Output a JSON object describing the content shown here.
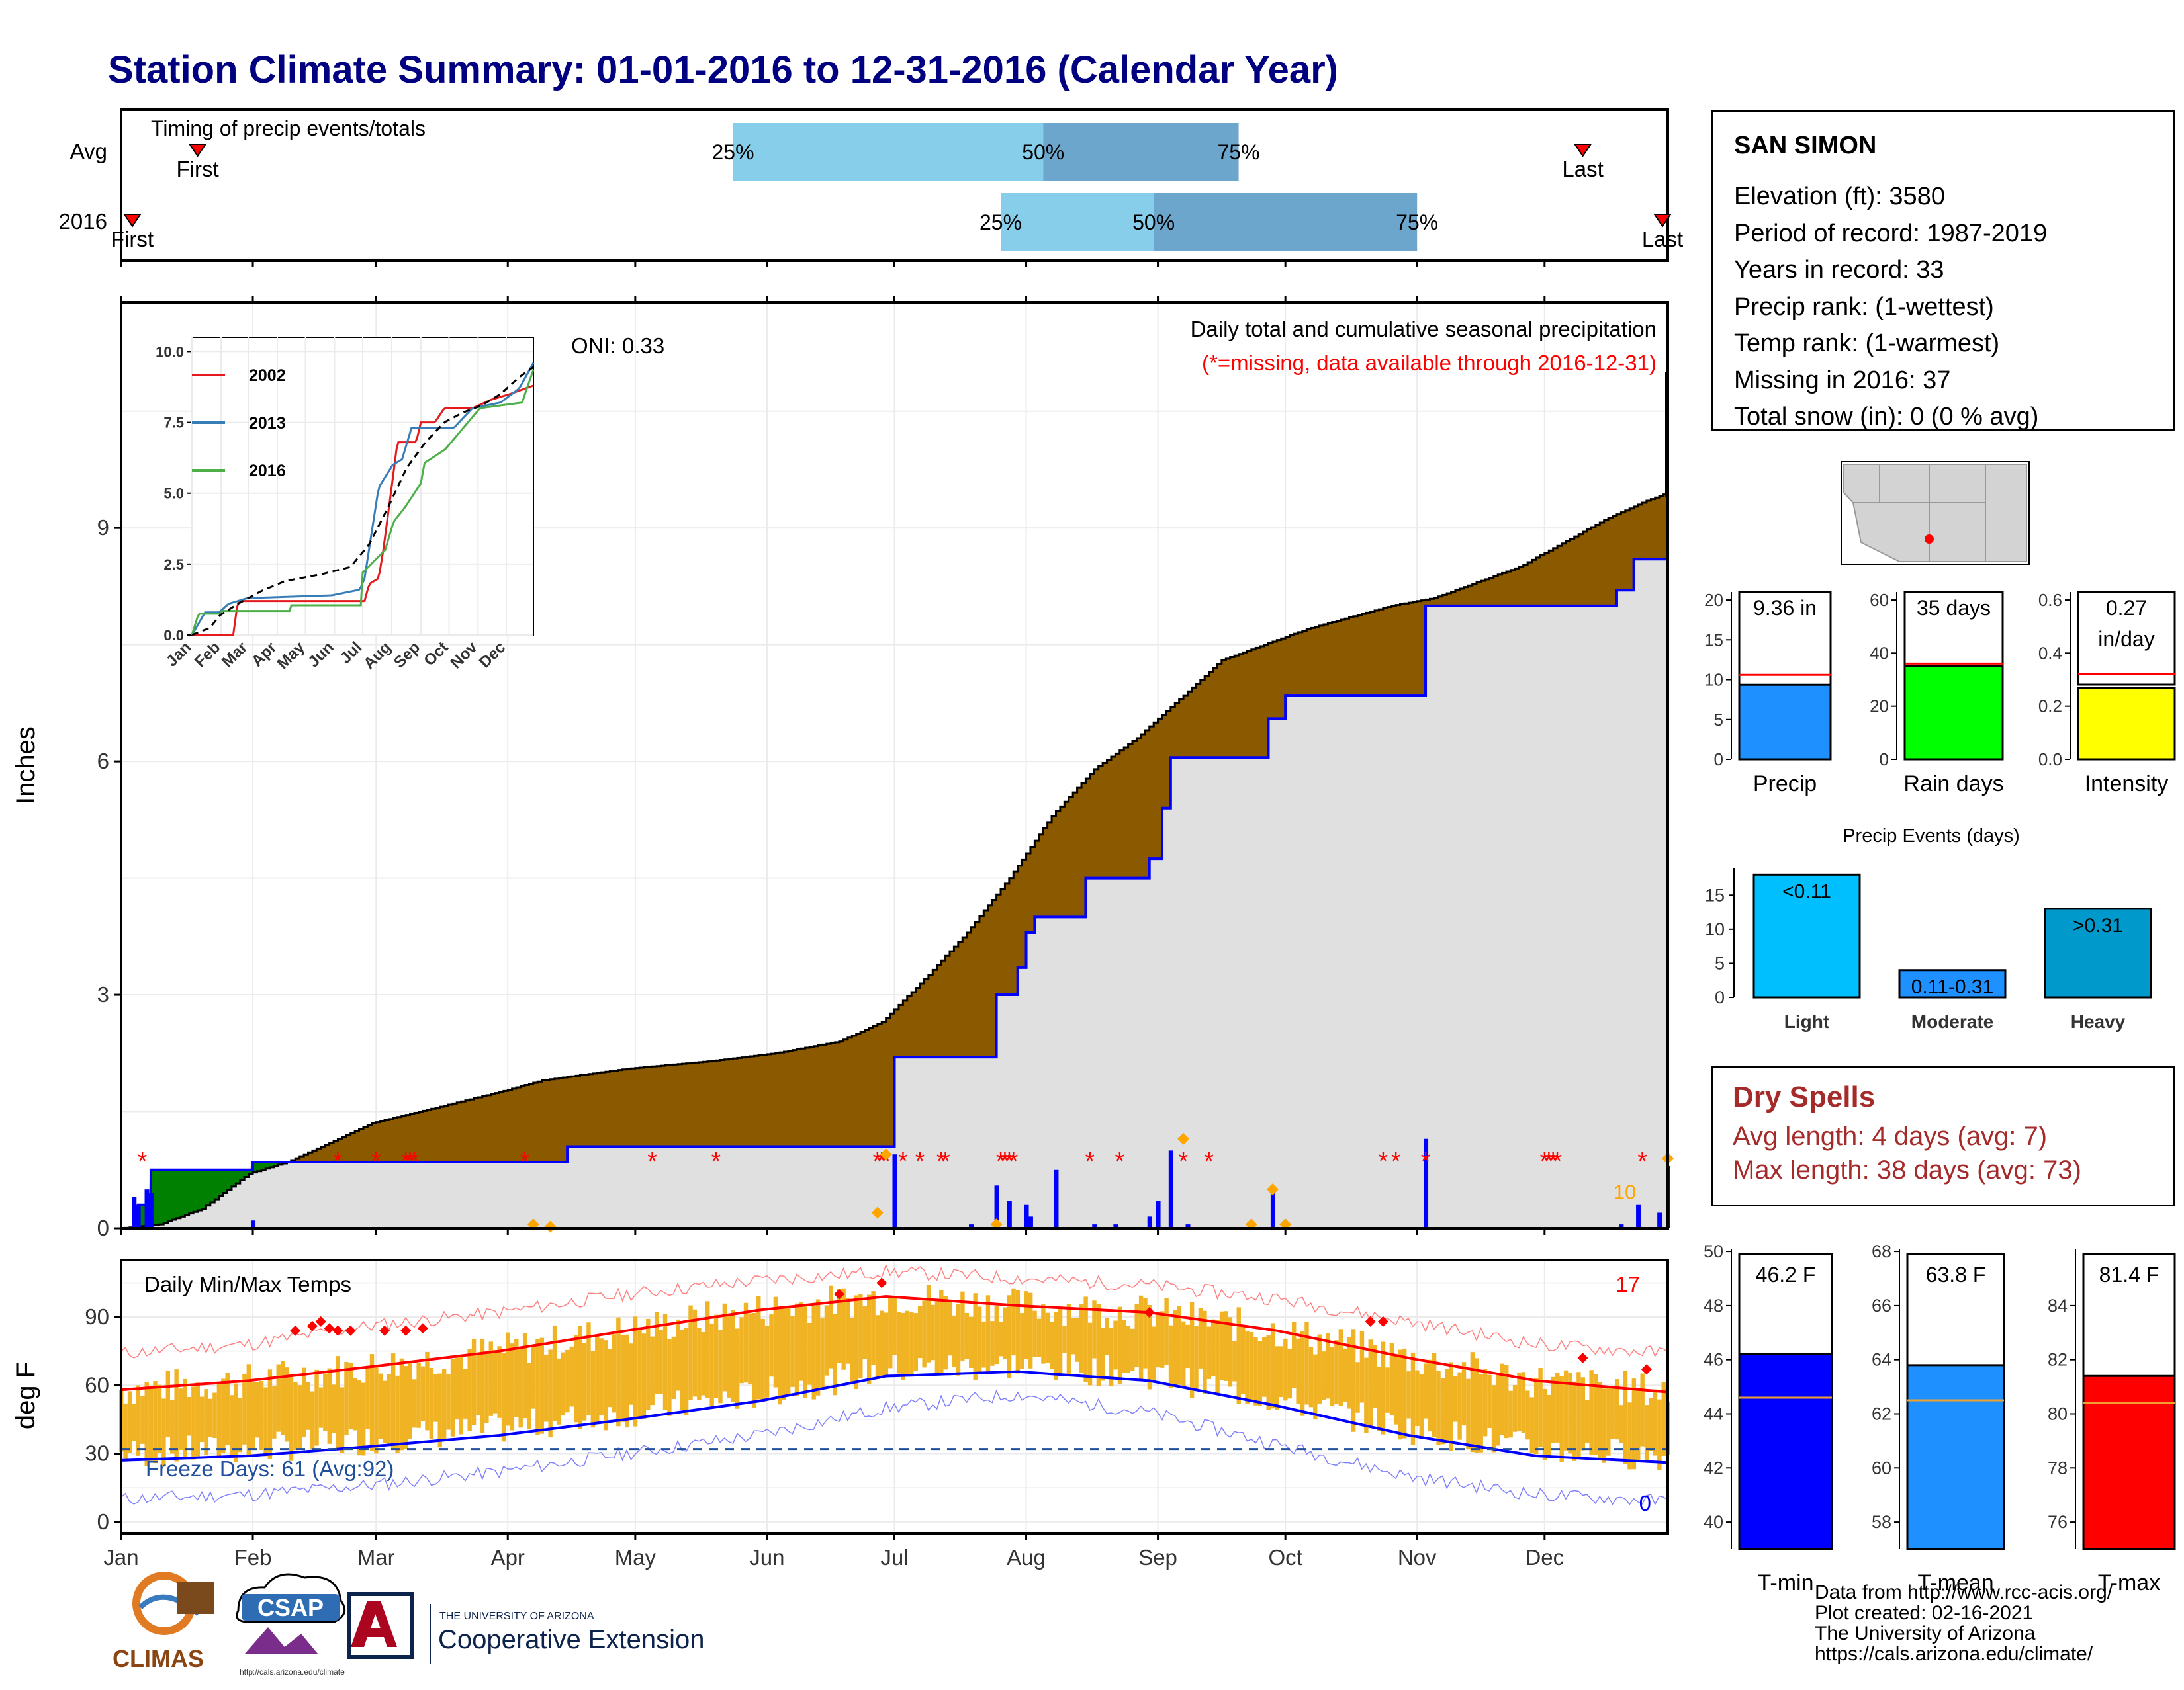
{
  "title": "Station Climate Summary: 01-01-2016 to 12-31-2016 (Calendar Year)",
  "timing": {
    "title": "Timing of precip events/totals",
    "rows": [
      {
        "label": "Avg",
        "first_doy": 19,
        "last_doy": 345,
        "p25_doy": 145,
        "p50_doy": 218,
        "p75_doy": 264
      },
      {
        "label": "2016",
        "first_doy": 3,
        "last_doy": 365,
        "p25_doy": 208,
        "p50_doy": 244,
        "p75_doy": 306
      }
    ],
    "first_label": "First",
    "last_label": "Last",
    "p25_label": "25%",
    "p50_label": "50%",
    "p75_label": "75%",
    "colors": {
      "light": "#87ceeb",
      "dark": "#6ca6cd"
    }
  },
  "station": {
    "name": "SAN SIMON",
    "elevation": "Elevation (ft): 3580",
    "period": "Period of record: 1987-2019",
    "years": "Years in record: 33",
    "precip_rank": "Precip rank:  (1-wettest)",
    "temp_rank": "Temp rank:  (1-warmest)",
    "missing": "Missing in 2016: 37",
    "snow": "Total snow (in): 0 (0 % avg)"
  },
  "chart_data": [
    {
      "type": "area",
      "id": "cumulative-precip",
      "title": "Daily total and cumulative seasonal precipitation",
      "subtitle": "(*=missing, data available through 2016-12-31)",
      "oni": "ONI: 0.33",
      "ylabel": "Inches",
      "ylim": [
        0,
        11.9
      ],
      "yticks": [
        0,
        3,
        6,
        9
      ],
      "months": [
        "Jan",
        "Feb",
        "Mar",
        "Apr",
        "May",
        "Jun",
        "Jul",
        "Aug",
        "Sep",
        "Oct",
        "Nov",
        "Dec"
      ],
      "avg_cumulative": [
        [
          1,
          0
        ],
        [
          10,
          0.05
        ],
        [
          20,
          0.25
        ],
        [
          31,
          0.7
        ],
        [
          40,
          0.85
        ],
        [
          50,
          1.1
        ],
        [
          60,
          1.35
        ],
        [
          75,
          1.55
        ],
        [
          90,
          1.75
        ],
        [
          100,
          1.9
        ],
        [
          120,
          2.05
        ],
        [
          140,
          2.15
        ],
        [
          155,
          2.25
        ],
        [
          170,
          2.4
        ],
        [
          180,
          2.65
        ],
        [
          190,
          3.2
        ],
        [
          200,
          3.8
        ],
        [
          210,
          4.5
        ],
        [
          220,
          5.3
        ],
        [
          230,
          5.9
        ],
        [
          240,
          6.3
        ],
        [
          250,
          6.8
        ],
        [
          260,
          7.3
        ],
        [
          270,
          7.5
        ],
        [
          280,
          7.7
        ],
        [
          290,
          7.85
        ],
        [
          300,
          8.0
        ],
        [
          310,
          8.1
        ],
        [
          320,
          8.3
        ],
        [
          330,
          8.5
        ],
        [
          340,
          8.8
        ],
        [
          350,
          9.1
        ],
        [
          360,
          9.35
        ],
        [
          365,
          9.45
        ]
      ],
      "obs_cumulative": [
        [
          1,
          0
        ],
        [
          5,
          0.3
        ],
        [
          8,
          0.75
        ],
        [
          31,
          0.75
        ],
        [
          32,
          0.85
        ],
        [
          105,
          0.85
        ],
        [
          106,
          1.05
        ],
        [
          182,
          1.05
        ],
        [
          183,
          2.2
        ],
        [
          206,
          2.2
        ],
        [
          207,
          3.0
        ],
        [
          212,
          3.35
        ],
        [
          214,
          3.8
        ],
        [
          216,
          4.0
        ],
        [
          227,
          4.0
        ],
        [
          228,
          4.5
        ],
        [
          240,
          4.5
        ],
        [
          243,
          4.75
        ],
        [
          246,
          5.4
        ],
        [
          248,
          6.05
        ],
        [
          270,
          6.05
        ],
        [
          271,
          6.55
        ],
        [
          275,
          6.85
        ],
        [
          307,
          6.85
        ],
        [
          308,
          8.0
        ],
        [
          352,
          8.0
        ],
        [
          353,
          8.2
        ],
        [
          357,
          8.6
        ],
        [
          363,
          8.6
        ],
        [
          365,
          9.36
        ]
      ],
      "daily_precip": [
        [
          4,
          0.4
        ],
        [
          5,
          0.3
        ],
        [
          7,
          0.5
        ],
        [
          8,
          0.45
        ],
        [
          32,
          0.1
        ],
        [
          183,
          0.95
        ],
        [
          201,
          0.05
        ],
        [
          207,
          0.55
        ],
        [
          210,
          0.35
        ],
        [
          214,
          0.3
        ],
        [
          215,
          0.15
        ],
        [
          221,
          0.75
        ],
        [
          230,
          0.05
        ],
        [
          235,
          0.05
        ],
        [
          243,
          0.15
        ],
        [
          245,
          0.35
        ],
        [
          248,
          1.0
        ],
        [
          252,
          0.05
        ],
        [
          272,
          0.5
        ],
        [
          308,
          1.15
        ],
        [
          354,
          0.05
        ],
        [
          358,
          0.3
        ],
        [
          363,
          0.2
        ],
        [
          365,
          0.8
        ]
      ],
      "missing_days": [
        6,
        52,
        61,
        68,
        69,
        70,
        96,
        126,
        141,
        179,
        180,
        181,
        185,
        189,
        194,
        195,
        208,
        209,
        210,
        211,
        229,
        236,
        251,
        257,
        298,
        301,
        308,
        336,
        337,
        338,
        339,
        359
      ],
      "orange_marks": [
        [
          98,
          0.05
        ],
        [
          102,
          0.02
        ],
        [
          179,
          0.2
        ],
        [
          181,
          0.95
        ],
        [
          207,
          0.05
        ],
        [
          251,
          1.15
        ],
        [
          267,
          0.05
        ],
        [
          272,
          0.5
        ],
        [
          275,
          0.05
        ],
        [
          365,
          0.9
        ]
      ],
      "orange_label": "10",
      "colors": {
        "above_avg": "#8b5a00",
        "below_avg": "#008000",
        "obs_line": "#0000ff",
        "fill": "#e0e0e0",
        "missing": "#ff0000",
        "marks": "#ffa500"
      }
    },
    {
      "type": "line",
      "id": "inset-cumulative",
      "xlabels": [
        "Jan",
        "Feb",
        "Mar",
        "Apr",
        "May",
        "Jun",
        "Jul",
        "Aug",
        "Sep",
        "Oct",
        "Nov",
        "Dec"
      ],
      "ylim": [
        0,
        10.5
      ],
      "yticks": [
        "0.0",
        "2.5",
        "5.0",
        "7.5",
        "10.0"
      ],
      "series": [
        {
          "name": "2002",
          "color": "#e41a1c",
          "points": [
            [
              1,
              0
            ],
            [
              45,
              0
            ],
            [
              50,
              1.2
            ],
            [
              100,
              1.2
            ],
            [
              150,
              1.2
            ],
            [
              185,
              1.2
            ],
            [
              190,
              1.8
            ],
            [
              200,
              2.0
            ],
            [
              205,
              3.0
            ],
            [
              215,
              5.5
            ],
            [
              220,
              6.8
            ],
            [
              240,
              6.8
            ],
            [
              245,
              7.5
            ],
            [
              260,
              7.5
            ],
            [
              270,
              8.0
            ],
            [
              300,
              8.0
            ],
            [
              320,
              8.3
            ],
            [
              340,
              8.5
            ],
            [
              365,
              8.8
            ]
          ]
        },
        {
          "name": "2013",
          "color": "#377eb8",
          "points": [
            [
              1,
              0
            ],
            [
              15,
              0.8
            ],
            [
              30,
              0.8
            ],
            [
              40,
              1.1
            ],
            [
              60,
              1.3
            ],
            [
              150,
              1.4
            ],
            [
              180,
              1.6
            ],
            [
              185,
              2.0
            ],
            [
              200,
              5.2
            ],
            [
              215,
              6.0
            ],
            [
              225,
              6.2
            ],
            [
              235,
              7.3
            ],
            [
              260,
              7.3
            ],
            [
              280,
              7.3
            ],
            [
              300,
              8.0
            ],
            [
              330,
              8.2
            ],
            [
              350,
              8.7
            ],
            [
              365,
              9.6
            ]
          ]
        },
        {
          "name": "2016",
          "color": "#4daf4a",
          "points": [
            [
              1,
              0
            ],
            [
              8,
              0.75
            ],
            [
              31,
              0.75
            ],
            [
              32,
              0.85
            ],
            [
              105,
              0.85
            ],
            [
              106,
              1.05
            ],
            [
              182,
              1.05
            ],
            [
              183,
              2.2
            ],
            [
              207,
              3.0
            ],
            [
              216,
              4.0
            ],
            [
              228,
              4.5
            ],
            [
              246,
              5.4
            ],
            [
              248,
              6.05
            ],
            [
              271,
              6.55
            ],
            [
              308,
              8.0
            ],
            [
              353,
              8.2
            ],
            [
              357,
              8.6
            ],
            [
              365,
              9.36
            ]
          ]
        }
      ],
      "avg_points": [
        [
          1,
          0
        ],
        [
          20,
          0.25
        ],
        [
          31,
          0.7
        ],
        [
          50,
          1.1
        ],
        [
          75,
          1.55
        ],
        [
          100,
          1.9
        ],
        [
          140,
          2.15
        ],
        [
          170,
          2.4
        ],
        [
          190,
          3.2
        ],
        [
          210,
          4.5
        ],
        [
          230,
          5.9
        ],
        [
          250,
          6.8
        ],
        [
          270,
          7.5
        ],
        [
          290,
          7.85
        ],
        [
          310,
          8.1
        ],
        [
          330,
          8.5
        ],
        [
          350,
          9.1
        ],
        [
          365,
          9.45
        ]
      ]
    },
    {
      "type": "bar",
      "id": "precip-total",
      "label": "9.36 in",
      "xlabel": "Precip",
      "value": 9.36,
      "avg": 10.6,
      "ylim": [
        0,
        21
      ],
      "yticks": [
        0,
        5,
        10,
        15,
        20
      ],
      "color": "#1e90ff"
    },
    {
      "type": "bar",
      "id": "rain-days",
      "label": "35 days",
      "xlabel": "Rain days",
      "value": 35,
      "avg": 36,
      "ylim": [
        0,
        63
      ],
      "yticks": [
        0,
        20,
        40,
        60
      ],
      "color": "#00ff00"
    },
    {
      "type": "bar",
      "id": "intensity",
      "label": "0.27",
      "label2": "in/day",
      "xlabel": "Intensity",
      "value": 0.27,
      "avg": 0.32,
      "ylim": [
        0,
        0.63
      ],
      "yticks": [
        "0.0",
        "0.2",
        "0.4",
        "0.6"
      ],
      "color": "#ffff00"
    },
    {
      "type": "bar",
      "id": "precip-events",
      "title": "Precip Events (days)",
      "categories": [
        "Light",
        "Moderate",
        "Heavy"
      ],
      "labels": [
        "<0.11",
        "0.11-0.31",
        ">0.31"
      ],
      "values": [
        18,
        4,
        13
      ],
      "ylim": [
        0,
        19
      ],
      "yticks": [
        0,
        5,
        10,
        15
      ],
      "colors": [
        "#00bfff",
        "#1e90ff",
        "#0099cc"
      ]
    },
    {
      "type": "line",
      "id": "daily-temps",
      "title": "Daily Min/Max Temps",
      "ylabel": "deg F",
      "ylim": [
        -5,
        115
      ],
      "yticks": [
        0,
        30,
        60,
        90
      ],
      "freeze_label": "Freeze Days: 61 (Avg:92)",
      "freeze_line": 32,
      "hot_count": "17",
      "cold_count": "0",
      "months": [
        "Jan",
        "Feb",
        "Mar",
        "Apr",
        "May",
        "Jun",
        "Jul",
        "Aug",
        "Sep",
        "Oct",
        "Nov",
        "Dec"
      ],
      "avg_max": [
        [
          1,
          58
        ],
        [
          31,
          62
        ],
        [
          59,
          68
        ],
        [
          90,
          75
        ],
        [
          120,
          84
        ],
        [
          151,
          93
        ],
        [
          181,
          99
        ],
        [
          212,
          95
        ],
        [
          243,
          92
        ],
        [
          273,
          84
        ],
        [
          304,
          72
        ],
        [
          334,
          62
        ],
        [
          365,
          57
        ]
      ],
      "avg_min": [
        [
          1,
          27
        ],
        [
          31,
          29
        ],
        [
          59,
          33
        ],
        [
          90,
          38
        ],
        [
          120,
          45
        ],
        [
          151,
          53
        ],
        [
          181,
          64
        ],
        [
          212,
          66
        ],
        [
          243,
          62
        ],
        [
          273,
          51
        ],
        [
          304,
          38
        ],
        [
          334,
          29
        ],
        [
          365,
          26
        ]
      ],
      "record_max": [
        [
          1,
          74
        ],
        [
          31,
          78
        ],
        [
          59,
          86
        ],
        [
          90,
          92
        ],
        [
          120,
          100
        ],
        [
          151,
          106
        ],
        [
          181,
          110
        ],
        [
          212,
          107
        ],
        [
          243,
          104
        ],
        [
          273,
          98
        ],
        [
          304,
          88
        ],
        [
          334,
          78
        ],
        [
          365,
          74
        ]
      ],
      "record_min": [
        [
          1,
          10
        ],
        [
          31,
          12
        ],
        [
          59,
          16
        ],
        [
          90,
          22
        ],
        [
          120,
          30
        ],
        [
          151,
          38
        ],
        [
          181,
          50
        ],
        [
          212,
          56
        ],
        [
          243,
          48
        ],
        [
          273,
          34
        ],
        [
          304,
          20
        ],
        [
          334,
          12
        ],
        [
          365,
          9
        ]
      ],
      "hot_days": [
        [
          42,
          84
        ],
        [
          46,
          86
        ],
        [
          48,
          88
        ],
        [
          50,
          85
        ],
        [
          52,
          84
        ],
        [
          55,
          84
        ],
        [
          63,
          84
        ],
        [
          68,
          84
        ],
        [
          72,
          85
        ],
        [
          170,
          100
        ],
        [
          180,
          105
        ],
        [
          243,
          92
        ],
        [
          295,
          88
        ],
        [
          298,
          88
        ],
        [
          345,
          72
        ],
        [
          360,
          67
        ]
      ],
      "colors": {
        "bars": "#f0b323",
        "max": "#ff0000",
        "min": "#0000ff",
        "record_max": "#ff8080",
        "record_min": "#8080ff",
        "freeze": "#1f4e9c"
      }
    },
    {
      "type": "bar",
      "id": "t-min",
      "label": "46.2 F",
      "xlabel": "T-min",
      "value": 46.2,
      "avg": 44.6,
      "ylim": [
        39,
        50.1
      ],
      "yticks": [
        40,
        42,
        44,
        46,
        48,
        50
      ],
      "color": "#0000ff"
    },
    {
      "type": "bar",
      "id": "t-mean",
      "label": "63.8 F",
      "xlabel": "T-mean",
      "value": 63.8,
      "avg": 62.5,
      "ylim": [
        57,
        68.1
      ],
      "yticks": [
        58,
        60,
        62,
        64,
        66,
        68
      ],
      "color": "#1e90ff"
    },
    {
      "type": "bar",
      "id": "t-max",
      "label": "81.4 F",
      "xlabel": "T-max",
      "value": 81.4,
      "avg": 80.4,
      "ylim": [
        75,
        86.1
      ],
      "yticks": [
        76,
        78,
        80,
        82,
        84
      ],
      "color": "#ff0000"
    }
  ],
  "dry_spells": {
    "title": "Dry Spells",
    "avg": "Avg length: 4 days (avg: 7)",
    "max": "Max length: 38 days (avg: 73)"
  },
  "credits": {
    "line1": "Data from http://www.rcc-acis.org/",
    "line2": "Plot created: 02-16-2021",
    "line3": "The University of Arizona",
    "line4": "https://cals.arizona.edu/climate/"
  },
  "logos": {
    "climas": "CLIMAS",
    "csap": "CSAP",
    "csap_url": "http://cals.arizona.edu/climate",
    "ua_small": "THE UNIVERSITY OF ARIZONA",
    "ua_ext": "Cooperative Extension"
  }
}
